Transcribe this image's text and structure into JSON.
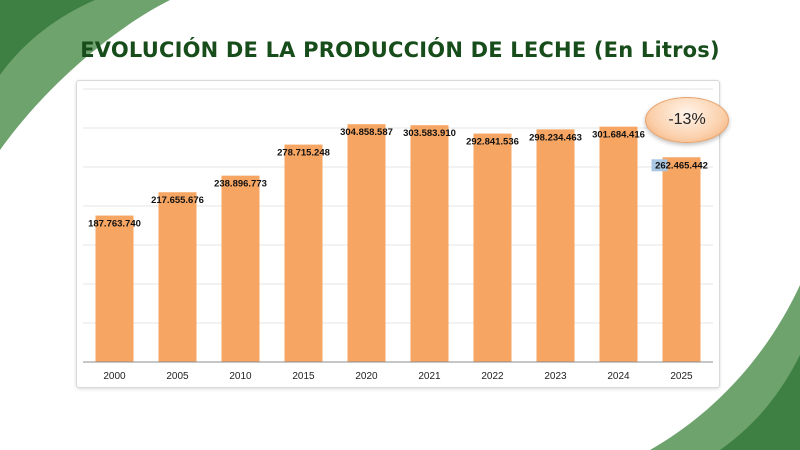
{
  "title": "EVOLUCIÓN DE LA PRODUCCIÓN DE LECHE (En Litros)",
  "badge": "-13%",
  "colors": {
    "bar": "#f6a562",
    "title": "#174d1a",
    "deco_dark": "#3e7f43",
    "deco_light": "#6fa36e",
    "last_label_bg": "#a9c6e2"
  },
  "chart_data": {
    "type": "bar",
    "title": "EVOLUCIÓN DE LA PRODUCCIÓN DE LECHE (En Litros)",
    "xlabel": "",
    "ylabel": "",
    "categories": [
      "2000",
      "2005",
      "2010",
      "2015",
      "2020",
      "2021",
      "2022",
      "2023",
      "2024",
      "2025"
    ],
    "values": [
      187763740,
      217655676,
      238896773,
      278715248,
      304858587,
      303583910,
      292841536,
      298234463,
      301684416,
      262465442
    ],
    "data_labels": [
      "187.763.740",
      "217.655.676",
      "238.896.773",
      "278.715.248",
      "304.858.587",
      "303.583.910",
      "292.841.536",
      "298.234.463",
      "301.684.416",
      "262.465.442"
    ],
    "ylim": [
      0,
      350000000
    ],
    "grid": true,
    "legend": "none"
  }
}
